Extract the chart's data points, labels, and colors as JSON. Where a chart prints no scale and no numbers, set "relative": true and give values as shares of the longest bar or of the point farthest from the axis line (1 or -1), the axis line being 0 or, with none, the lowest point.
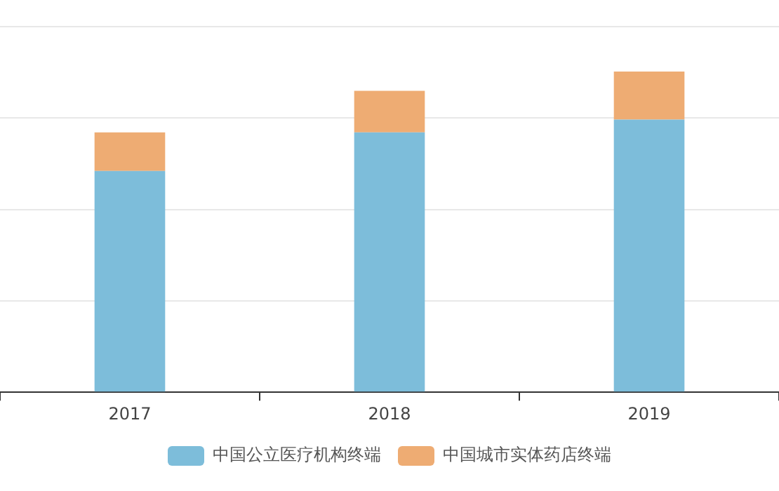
{
  "chart_data": {
    "type": "bar",
    "stacked": true,
    "relative": true,
    "grid": "y",
    "legend": "bottom",
    "categories": [
      "2017",
      "2018",
      "2019"
    ],
    "series": [
      {
        "name": "中国公立医疗机构终端",
        "color": "#7dbdda",
        "values": [
          0.69,
          0.81,
          0.85
        ]
      },
      {
        "name": "中国城市实体药店终端",
        "color": "#eeac73",
        "values": [
          0.12,
          0.13,
          0.15
        ]
      }
    ]
  }
}
